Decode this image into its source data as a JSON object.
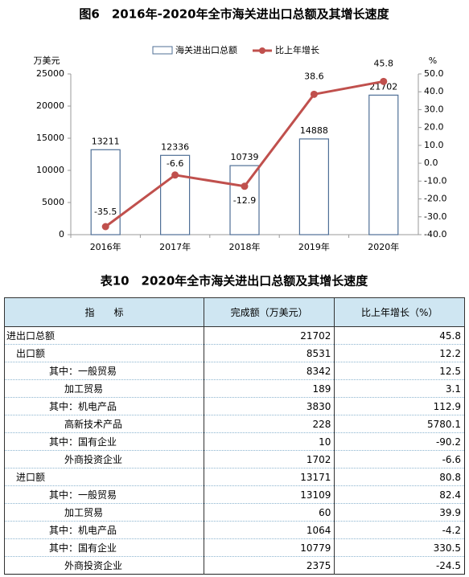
{
  "chart_data": {
    "type": "combo",
    "title": "图6　2016年-2020年全市海关进出口总额及其增长速度",
    "y_label": "万美元",
    "y2_label": "%",
    "categories": [
      "2016年",
      "2017年",
      "2018年",
      "2019年",
      "2020年"
    ],
    "series": [
      {
        "name": "海关进出口总额",
        "type": "bar",
        "color": "#4f6f96",
        "values": [
          13211,
          12336,
          10739,
          14888,
          21702
        ]
      },
      {
        "name": "比上年增长",
        "type": "line",
        "axis": "y2",
        "color": "#c0504d",
        "values": [
          -35.5,
          -6.6,
          -12.9,
          38.6,
          45.8
        ]
      }
    ],
    "ylim": [
      0,
      25000
    ],
    "yticks": [
      0,
      5000,
      10000,
      15000,
      20000,
      25000
    ],
    "y2lim": [
      -40,
      50
    ],
    "y2ticks": [
      {
        "value": -40,
        "label": "-40.0"
      },
      {
        "value": -30,
        "label": "-30.0"
      },
      {
        "value": -20,
        "label": "-20.0"
      },
      {
        "value": -10,
        "label": "-10.0"
      },
      {
        "value": 0,
        "label": "0.0"
      },
      {
        "value": 10,
        "label": "10.0"
      },
      {
        "value": 20,
        "label": "20.0"
      },
      {
        "value": 30,
        "label": "30.0"
      },
      {
        "value": 40,
        "label": "40.0"
      },
      {
        "value": 50,
        "label": "50.0"
      }
    ],
    "legend": "top",
    "grid": false
  },
  "table": {
    "title": "表10　2020年全市海关进出口总额及其增长速度",
    "header": [
      "指　　标",
      "完成额（万美元）",
      "比上年增长（%）"
    ],
    "rows": [
      [
        "进出口总额",
        21702,
        45.8
      ],
      [
        "出口额",
        8531,
        12.2
      ],
      [
        "其中：一般贸易",
        8342,
        12.5
      ],
      [
        "加工贸易",
        189,
        3.1
      ],
      [
        "其中：机电产品",
        3830,
        112.9
      ],
      [
        "高新技术产品",
        228,
        5780.1
      ],
      [
        "其中：国有企业",
        10,
        -90.2
      ],
      [
        "外商投资企业",
        1702,
        -6.6
      ],
      [
        "进口额",
        13171,
        80.8
      ],
      [
        "其中：一般贸易",
        13109,
        82.4
      ],
      [
        "加工贸易",
        60,
        39.9
      ],
      [
        "其中：机电产品",
        1064,
        -4.2
      ],
      [
        "其中：国有企业",
        10779,
        330.5
      ],
      [
        "外商投资企业",
        2375,
        -24.5
      ]
    ]
  }
}
